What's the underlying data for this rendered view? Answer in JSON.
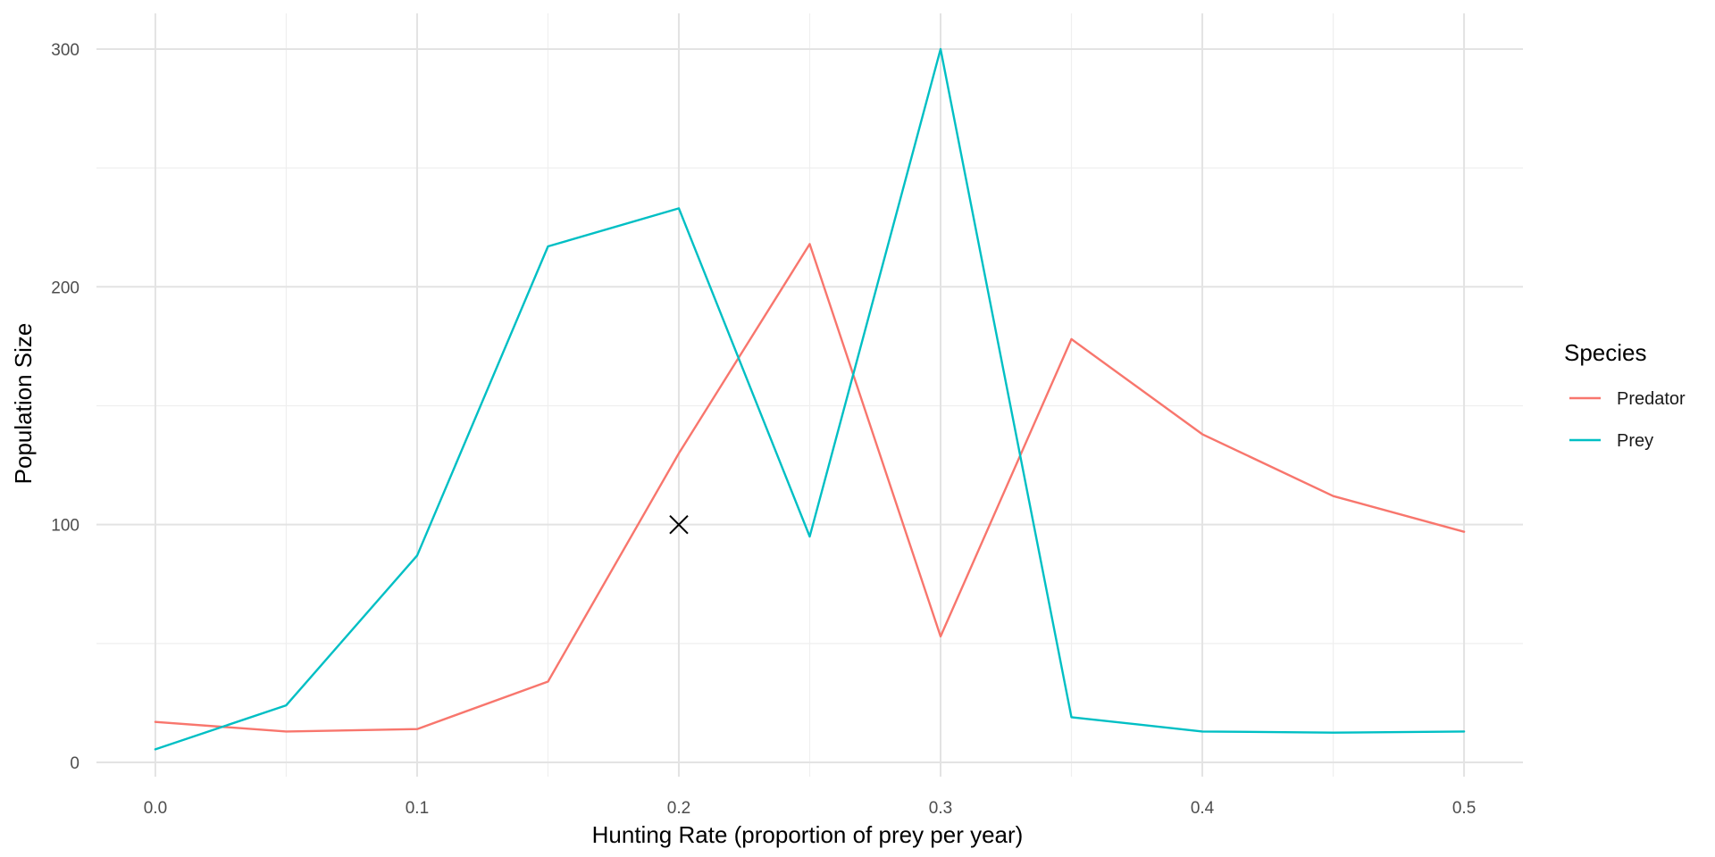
{
  "chart_data": {
    "type": "line",
    "xlabel": "Hunting Rate (proportion of prey per year)",
    "ylabel": "Population Size",
    "xlim": [
      -0.0225,
      0.5225
    ],
    "ylim": [
      -6,
      315
    ],
    "x_ticks": [
      0.0,
      0.1,
      0.2,
      0.3,
      0.4,
      0.5
    ],
    "x_tick_labels": [
      "0.0",
      "0.1",
      "0.2",
      "0.3",
      "0.4",
      "0.5"
    ],
    "x_minor_ticks": [
      0.05,
      0.15,
      0.25,
      0.35,
      0.45
    ],
    "y_ticks": [
      0,
      100,
      200,
      300
    ],
    "y_tick_labels": [
      "0",
      "100",
      "200",
      "300"
    ],
    "y_minor_ticks": [
      50,
      150,
      250
    ],
    "grid": true,
    "legend": {
      "title": "Species",
      "position": "right"
    },
    "x": [
      0.0,
      0.05,
      0.1,
      0.15,
      0.2,
      0.25,
      0.3,
      0.35,
      0.4,
      0.45,
      0.5
    ],
    "series": [
      {
        "name": "Predator",
        "color": "#F8766D",
        "values": [
          17,
          13,
          14,
          34,
          130,
          218,
          53,
          178,
          138,
          112,
          97
        ]
      },
      {
        "name": "Prey",
        "color": "#00BFC4",
        "values": [
          5.5,
          24,
          87,
          217,
          233,
          95,
          300,
          19,
          13,
          12.5,
          13
        ]
      }
    ],
    "annotations": [
      {
        "type": "marker",
        "shape": "x",
        "x": 0.2,
        "y": 100,
        "color": "#000000"
      }
    ]
  }
}
